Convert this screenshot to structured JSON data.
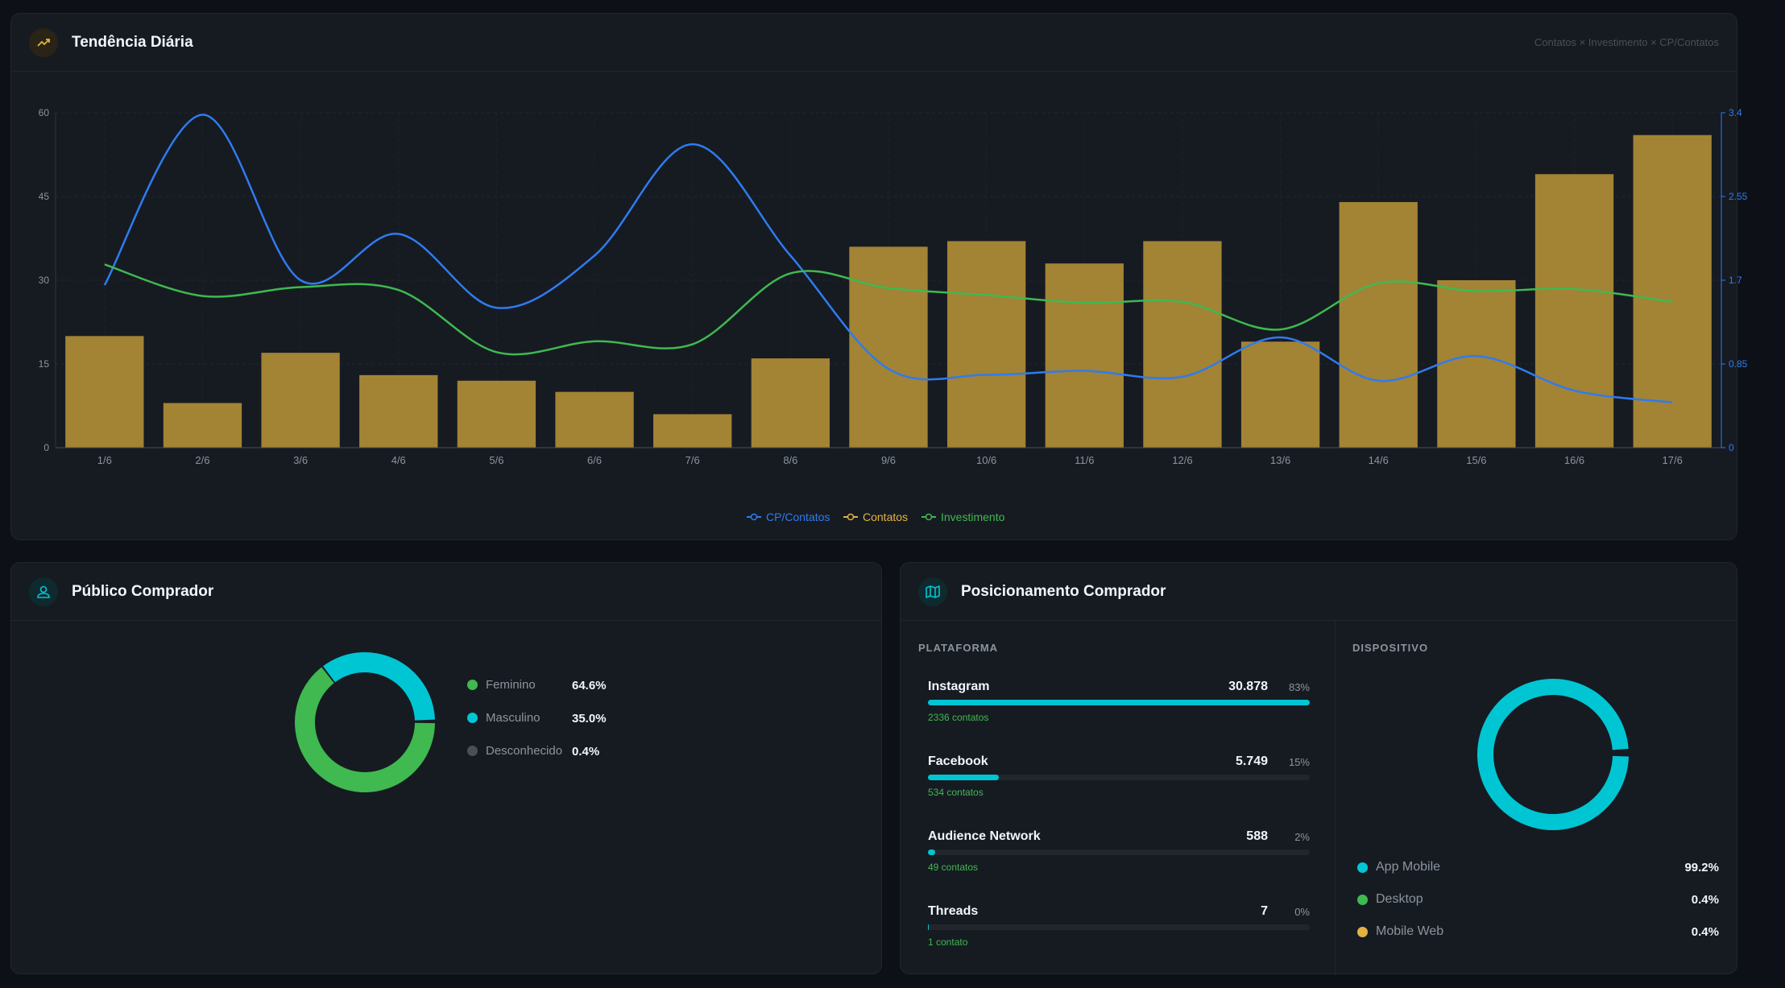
{
  "trend": {
    "title": "Tendência Diária",
    "subtitle": "Contatos × Investimento × CP/Contatos",
    "legend": [
      "CP/Contatos",
      "Contatos",
      "Investimento"
    ]
  },
  "chart_data": {
    "type": "bar",
    "categories": [
      "1/6",
      "2/6",
      "3/6",
      "4/6",
      "5/6",
      "6/6",
      "7/6",
      "8/6",
      "9/6",
      "10/6",
      "11/6",
      "12/6",
      "13/6",
      "14/6",
      "15/6",
      "16/6",
      "17/6"
    ],
    "y_left": {
      "ticks": [
        "0",
        "15",
        "30",
        "45",
        "60"
      ],
      "ylim": [
        0,
        60
      ]
    },
    "y_right": {
      "ticks": [
        "0",
        "0.85",
        "1.7",
        "2.55",
        "3.4"
      ],
      "ylim": [
        0,
        3.4
      ]
    },
    "series": [
      {
        "name": "Contatos",
        "type": "bar",
        "axis": "left",
        "color": "#a38334",
        "values": [
          20,
          8,
          17,
          13,
          12,
          10,
          6,
          16,
          36,
          37,
          33,
          37,
          19,
          44,
          30,
          49,
          56
        ]
      },
      {
        "name": "CP/Contatos",
        "type": "line",
        "axis": "right",
        "color": "#2f7bf0",
        "values": [
          1.65,
          3.38,
          1.7,
          2.17,
          1.42,
          1.95,
          3.08,
          1.95,
          0.8,
          0.74,
          0.78,
          0.72,
          1.12,
          0.68,
          0.93,
          0.58,
          0.46
        ]
      },
      {
        "name": "Investimento",
        "type": "line",
        "axis": "right",
        "color": "#3fb950",
        "values": [
          1.86,
          1.54,
          1.63,
          1.6,
          0.97,
          1.08,
          1.05,
          1.77,
          1.62,
          1.55,
          1.47,
          1.48,
          1.2,
          1.67,
          1.59,
          1.61,
          1.48
        ]
      }
    ],
    "grid": true,
    "legend_position": "bottom-center"
  },
  "publico": {
    "title": "Público Comprador",
    "items": [
      {
        "label": "Feminino",
        "pct": "64.6%",
        "value": 64.6,
        "color": "#3fb950"
      },
      {
        "label": "Masculino",
        "pct": "35.0%",
        "value": 35.0,
        "color": "#00c6d4"
      },
      {
        "label": "Desconhecido",
        "pct": "0.4%",
        "value": 0.4,
        "color": "#484f58"
      }
    ]
  },
  "posic": {
    "title": "Posicionamento Comprador",
    "plataforma_label": "PLATAFORMA",
    "dispositivo_label": "DISPOSITIVO",
    "platforms": [
      {
        "name": "Instagram",
        "value": "30.878",
        "pct": "83%",
        "fill": 100,
        "sub": "2336 contatos"
      },
      {
        "name": "Facebook",
        "value": "5.749",
        "pct": "15%",
        "fill": 18.6,
        "sub": "534 contatos"
      },
      {
        "name": "Audience Network",
        "value": "588",
        "pct": "2%",
        "fill": 1.9,
        "sub": "49 contatos"
      },
      {
        "name": "Threads",
        "value": "7",
        "pct": "0%",
        "fill": 0.2,
        "sub": "1 contato"
      }
    ],
    "devices": [
      {
        "label": "App Mobile",
        "pct": "99.2%",
        "value": 99.2,
        "color": "#00c6d4"
      },
      {
        "label": "Desktop",
        "pct": "0.4%",
        "value": 0.4,
        "color": "#3fb950"
      },
      {
        "label": "Mobile Web",
        "pct": "0.4%",
        "value": 0.4,
        "color": "#e3b341"
      }
    ]
  },
  "colors": {
    "accent": "#00c6d4",
    "bar": "#a38334",
    "blue": "#2f7bf0",
    "green": "#3fb950"
  }
}
